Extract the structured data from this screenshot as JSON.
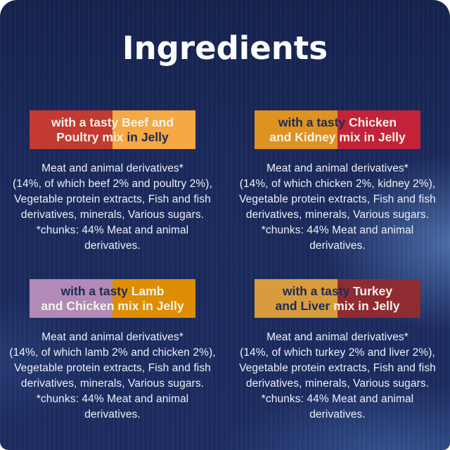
{
  "page": {
    "title": "Ingredients"
  },
  "colors": {
    "panel_navy": "#1c2b5e",
    "navy_text": "#1e2a56",
    "cream_text": "#f6f2e9",
    "body_text": "#eef1f6"
  },
  "panels": [
    {
      "id": "beef-poultry",
      "header": {
        "left_color": "#c23a30",
        "right_color": "#f5a843",
        "line1": [
          {
            "text": "with a tasty Beef and",
            "color": "#f6f2e9"
          },
          {
            "text": "",
            "color": "#f6f2e9"
          }
        ],
        "line2": [
          {
            "text": "Poultry mix",
            "color": "#f6f2e9"
          },
          {
            "text": " in Jelly",
            "color": "#1e2a56"
          }
        ]
      },
      "body_lines": [
        "Meat and animal derivatives*",
        "(14%, of which beef 2% and poultry 2%),",
        "Vegetable protein extracts, Fish and fish",
        "derivatives, minerals, Various sugars.",
        "*chunks: 44% Meat and animal derivatives."
      ]
    },
    {
      "id": "chicken-kidney",
      "header": {
        "left_color": "#dd9221",
        "right_color": "#c22339",
        "line1": [
          {
            "text": "with a tasty ",
            "color": "#1e2a56"
          },
          {
            "text": "Chicken",
            "color": "#f6f2e9"
          }
        ],
        "line2": [
          {
            "text": "and Kidney mix in Jelly",
            "color": "#f6f2e9"
          },
          {
            "text": "",
            "color": "#f6f2e9"
          }
        ]
      },
      "body_lines": [
        "Meat and animal derivatives*",
        "(14%, of which chicken 2%, kidney 2%),",
        "Vegetable protein extracts, Fish and fish",
        "derivatives, minerals, Various sugars.",
        "*chunks: 44% Meat and animal derivatives."
      ]
    },
    {
      "id": "lamb-chicken",
      "header": {
        "left_color": "#b18ab5",
        "right_color": "#dd8e05",
        "line1": [
          {
            "text": "with a tasty ",
            "color": "#1e2a56"
          },
          {
            "text": "Lamb",
            "color": "#f6f2e9"
          }
        ],
        "line2": [
          {
            "text": "and Chicken mix in Jelly",
            "color": "#f6f2e9"
          },
          {
            "text": "",
            "color": "#f6f2e9"
          }
        ]
      },
      "body_lines": [
        "Meat and animal derivatives*",
        "(14%, of which lamb 2% and chicken 2%),",
        "Vegetable protein extracts, Fish and fish",
        "derivatives, minerals, Various sugars.",
        "*chunks: 44% Meat and animal derivatives."
      ]
    },
    {
      "id": "turkey-liver",
      "header": {
        "left_color": "#d89c3e",
        "right_color": "#8e2c32",
        "line1": [
          {
            "text": "with a tasty ",
            "color": "#1e2a56"
          },
          {
            "text": "Turkey",
            "color": "#f6f2e9"
          }
        ],
        "line2": [
          {
            "text": "and Liver ",
            "color": "#1e2a56"
          },
          {
            "text": "mix in Jelly",
            "color": "#f6f2e9"
          }
        ]
      },
      "body_lines": [
        "Meat and animal derivatives*",
        "(14%, of which turkey 2% and liver 2%),",
        "Vegetable protein extracts, Fish and fish",
        "derivatives, minerals, Various sugars.",
        "*chunks: 44% Meat and animal derivatives."
      ]
    }
  ]
}
